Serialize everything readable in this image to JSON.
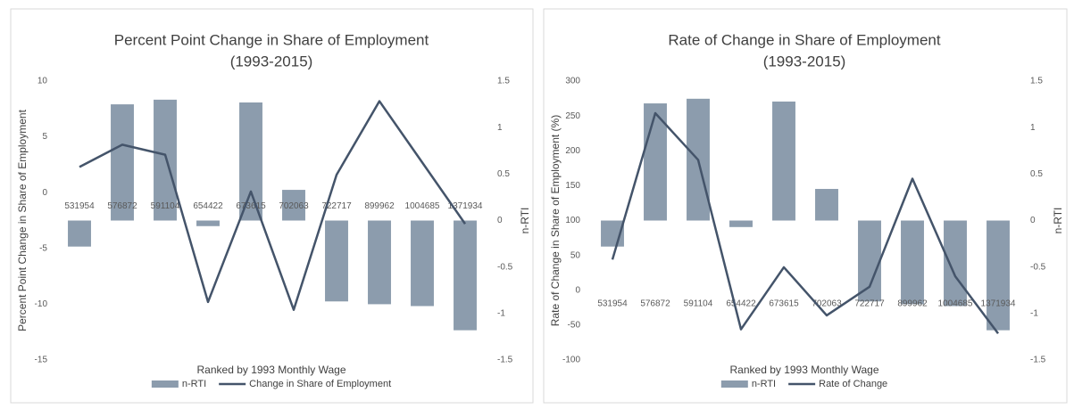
{
  "chart_data": [
    {
      "type": "combo",
      "title": "Percent Point Change in Share of Employment",
      "subtitle": "(1993-2015)",
      "x_label": "Ranked by 1993 Monthly Wage",
      "y_label": "Percent Point Change in Share of Employment",
      "y2_label": "n-RTI",
      "categories": [
        "531954",
        "576872",
        "591104",
        "654422",
        "673615",
        "702063",
        "722717",
        "899962",
        "1004685",
        "1371934"
      ],
      "series": [
        {
          "name": "n-RTI",
          "type": "bar",
          "axis": "y2",
          "color": "#8c9cad",
          "values": [
            -0.28,
            1.25,
            1.3,
            -0.06,
            1.27,
            0.33,
            -0.87,
            -0.9,
            -0.92,
            -1.18
          ]
        },
        {
          "name": "Change in Share of Employment",
          "type": "line",
          "color": "#44546a",
          "values": [
            2.3,
            4.3,
            3.4,
            -9.8,
            0.1,
            -10.5,
            1.6,
            8.2,
            2.7,
            -2.8
          ]
        }
      ],
      "ylim": [
        -15,
        10
      ],
      "yticks": [
        -15,
        -10,
        -5,
        0,
        5,
        10
      ],
      "y2lim": [
        -1.5,
        1.5
      ],
      "y2ticks": [
        -1.5,
        -1,
        -0.5,
        0,
        0.5,
        1,
        1.5
      ],
      "grid": false
    },
    {
      "type": "combo",
      "title": "Rate of Change in Share of Employment",
      "subtitle": "(1993-2015)",
      "x_label": "Ranked by 1993 Monthly Wage",
      "y_label": "Rate of Change in Share of Employment (%)",
      "y2_label": "n-RTI",
      "categories": [
        "531954",
        "576872",
        "591104",
        "654422",
        "673615",
        "702063",
        "722717",
        "899962",
        "1004685",
        "1371934"
      ],
      "series": [
        {
          "name": "n-RTI",
          "type": "bar",
          "axis": "y2",
          "color": "#8c9cad",
          "values": [
            -0.28,
            1.26,
            1.31,
            -0.07,
            1.28,
            0.34,
            -0.87,
            -0.9,
            -0.92,
            -1.18
          ]
        },
        {
          "name": "Rate of Change",
          "type": "line",
          "color": "#44546a",
          "values": [
            44,
            254,
            187,
            -56,
            33,
            -36,
            5,
            160,
            20,
            -62
          ]
        }
      ],
      "ylim": [
        -100,
        300
      ],
      "yticks": [
        -100,
        -50,
        0,
        50,
        100,
        150,
        200,
        250,
        300
      ],
      "y2lim": [
        -1.5,
        1.5
      ],
      "y2ticks": [
        -1.5,
        -1,
        -0.5,
        0,
        0.5,
        1,
        1.5
      ],
      "grid": false
    }
  ]
}
